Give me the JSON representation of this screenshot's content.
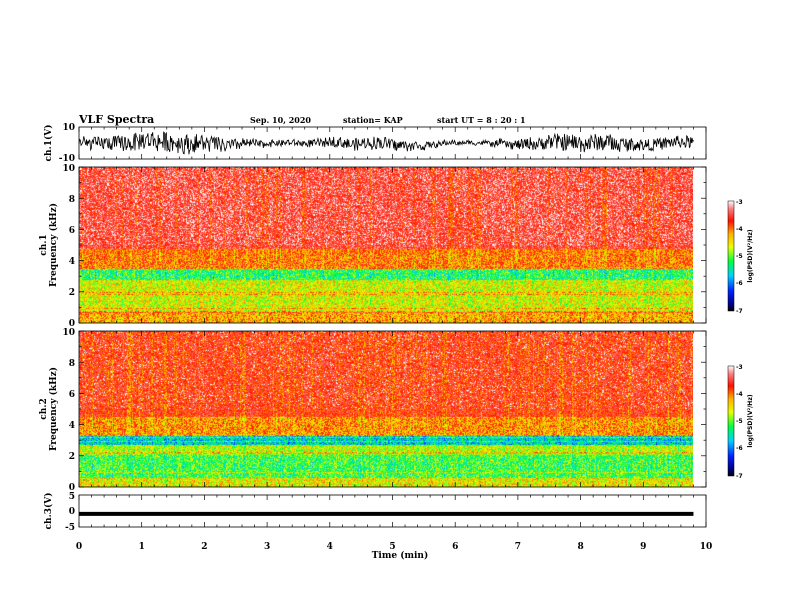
{
  "header": {
    "title": "VLF Spectra",
    "date": "Sep. 10, 2020",
    "station": "station= KAP",
    "start": "start  UT  =   8  : 20 : 1"
  },
  "chart_data": [
    {
      "type": "line",
      "panel": "ch1-waveform",
      "ylabel": "ch.1(V)",
      "ylim": [
        -10,
        10
      ],
      "yticks": [
        "10",
        "-10"
      ],
      "xlim": [
        0,
        10
      ],
      "note_visible": "noisy black trace oscillating roughly between -9 and +9 V across 0 to 9.8 min"
    },
    {
      "type": "heatmap",
      "panel": "ch1-spectrogram",
      "ylabel": "ch.1\nFrequency (kHz)",
      "ylabel_line1": "ch.1",
      "ylabel_line2": "Frequency (kHz)",
      "ylim": [
        0,
        10
      ],
      "yticks": [
        "0",
        "2",
        "4",
        "6",
        "8",
        "10"
      ],
      "xlim": [
        0,
        10
      ],
      "colorbar": {
        "label": "log(PSD)(V²/Hz)",
        "ticks": [
          "-3",
          "-4",
          "-5",
          "-6",
          "-7"
        ],
        "range": [
          -7,
          -3
        ]
      },
      "bands_kHz": [
        {
          "from": 0.0,
          "to": 0.8,
          "level": -4.2
        },
        {
          "from": 0.8,
          "to": 2.8,
          "level": -4.6
        },
        {
          "from": 2.8,
          "to": 3.5,
          "level": -5.2
        },
        {
          "from": 3.5,
          "to": 4.8,
          "level": -4.0
        },
        {
          "from": 4.8,
          "to": 10.0,
          "level": -3.5
        }
      ]
    },
    {
      "type": "heatmap",
      "panel": "ch2-spectrogram",
      "ylabel_line1": "ch.2",
      "ylabel_line2": "Frequency (kHz)",
      "ylim": [
        0,
        10
      ],
      "yticks": [
        "0",
        "2",
        "4",
        "6",
        "8",
        "10"
      ],
      "xlim": [
        0,
        10
      ],
      "colorbar": {
        "label": "log(PSD)(V²/Hz)",
        "ticks": [
          "-3",
          "-4",
          "-5",
          "-6",
          "-7"
        ],
        "range": [
          -7,
          -3
        ]
      },
      "bands_kHz": [
        {
          "from": 0.0,
          "to": 0.6,
          "level": -4.5
        },
        {
          "from": 0.6,
          "to": 2.2,
          "level": -5.1
        },
        {
          "from": 2.2,
          "to": 2.7,
          "level": -4.7
        },
        {
          "from": 2.7,
          "to": 3.3,
          "level": -5.6
        },
        {
          "from": 3.3,
          "to": 4.5,
          "level": -4.1
        },
        {
          "from": 4.5,
          "to": 10.0,
          "level": -3.7
        }
      ]
    },
    {
      "type": "line",
      "panel": "ch3-waveform",
      "ylabel": "ch.3(V)",
      "ylim": [
        -5,
        5
      ],
      "yticks": [
        "5",
        "0",
        "-5"
      ],
      "xlim": [
        0,
        10
      ],
      "xticks": [
        "0",
        "1",
        "2",
        "3",
        "4",
        "5",
        "6",
        "7",
        "8",
        "9",
        "10"
      ],
      "xlabel": "Time (min)",
      "note_visible": "flat thick trace near -1 V from 0 to 9.8 min"
    }
  ]
}
